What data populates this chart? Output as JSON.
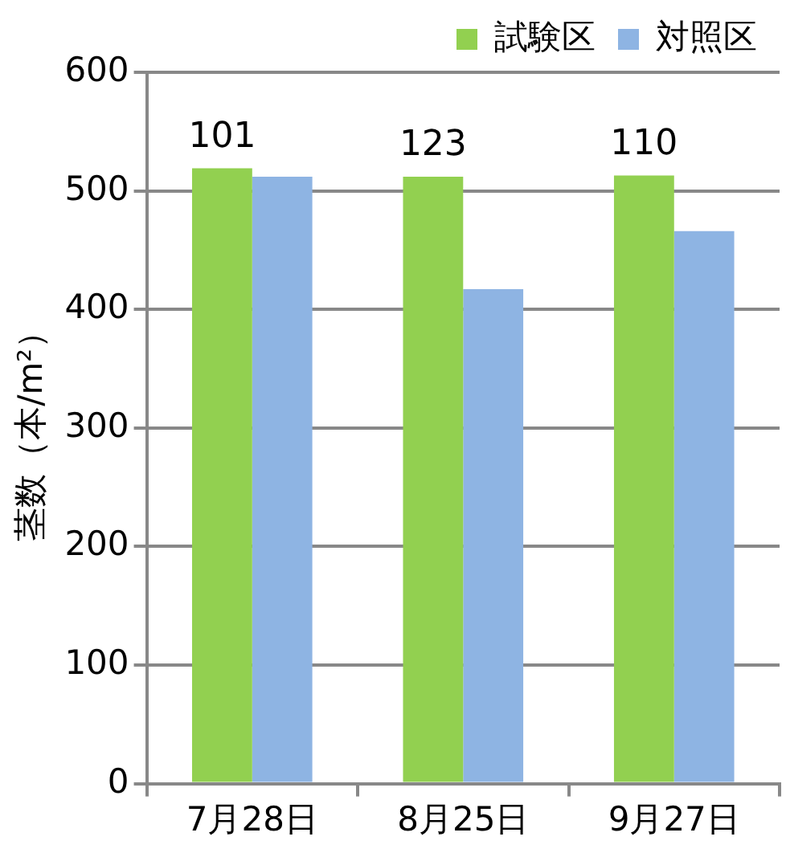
{
  "chart_data": {
    "type": "bar",
    "ylabel": "茎数（本/m²）",
    "categories": [
      "7月28日",
      "8月25日",
      "9月27日"
    ],
    "series": [
      {
        "name": "試験区",
        "color": "#92d050",
        "values": [
          519,
          512,
          513
        ]
      },
      {
        "name": "対照区",
        "color": "#8eb4e3",
        "values": [
          512,
          417,
          466
        ]
      }
    ],
    "ylim": [
      0,
      600
    ],
    "yticks": [
      0,
      100,
      200,
      300,
      400,
      500,
      600
    ],
    "grid": "y",
    "legend": "top right",
    "annotations": [
      {
        "text": "101",
        "x": "7月28日",
        "y": 519
      },
      {
        "text": "123",
        "x": "8月25日",
        "y": 512
      },
      {
        "text": "110",
        "x": "9月27日",
        "y": 513
      }
    ]
  }
}
